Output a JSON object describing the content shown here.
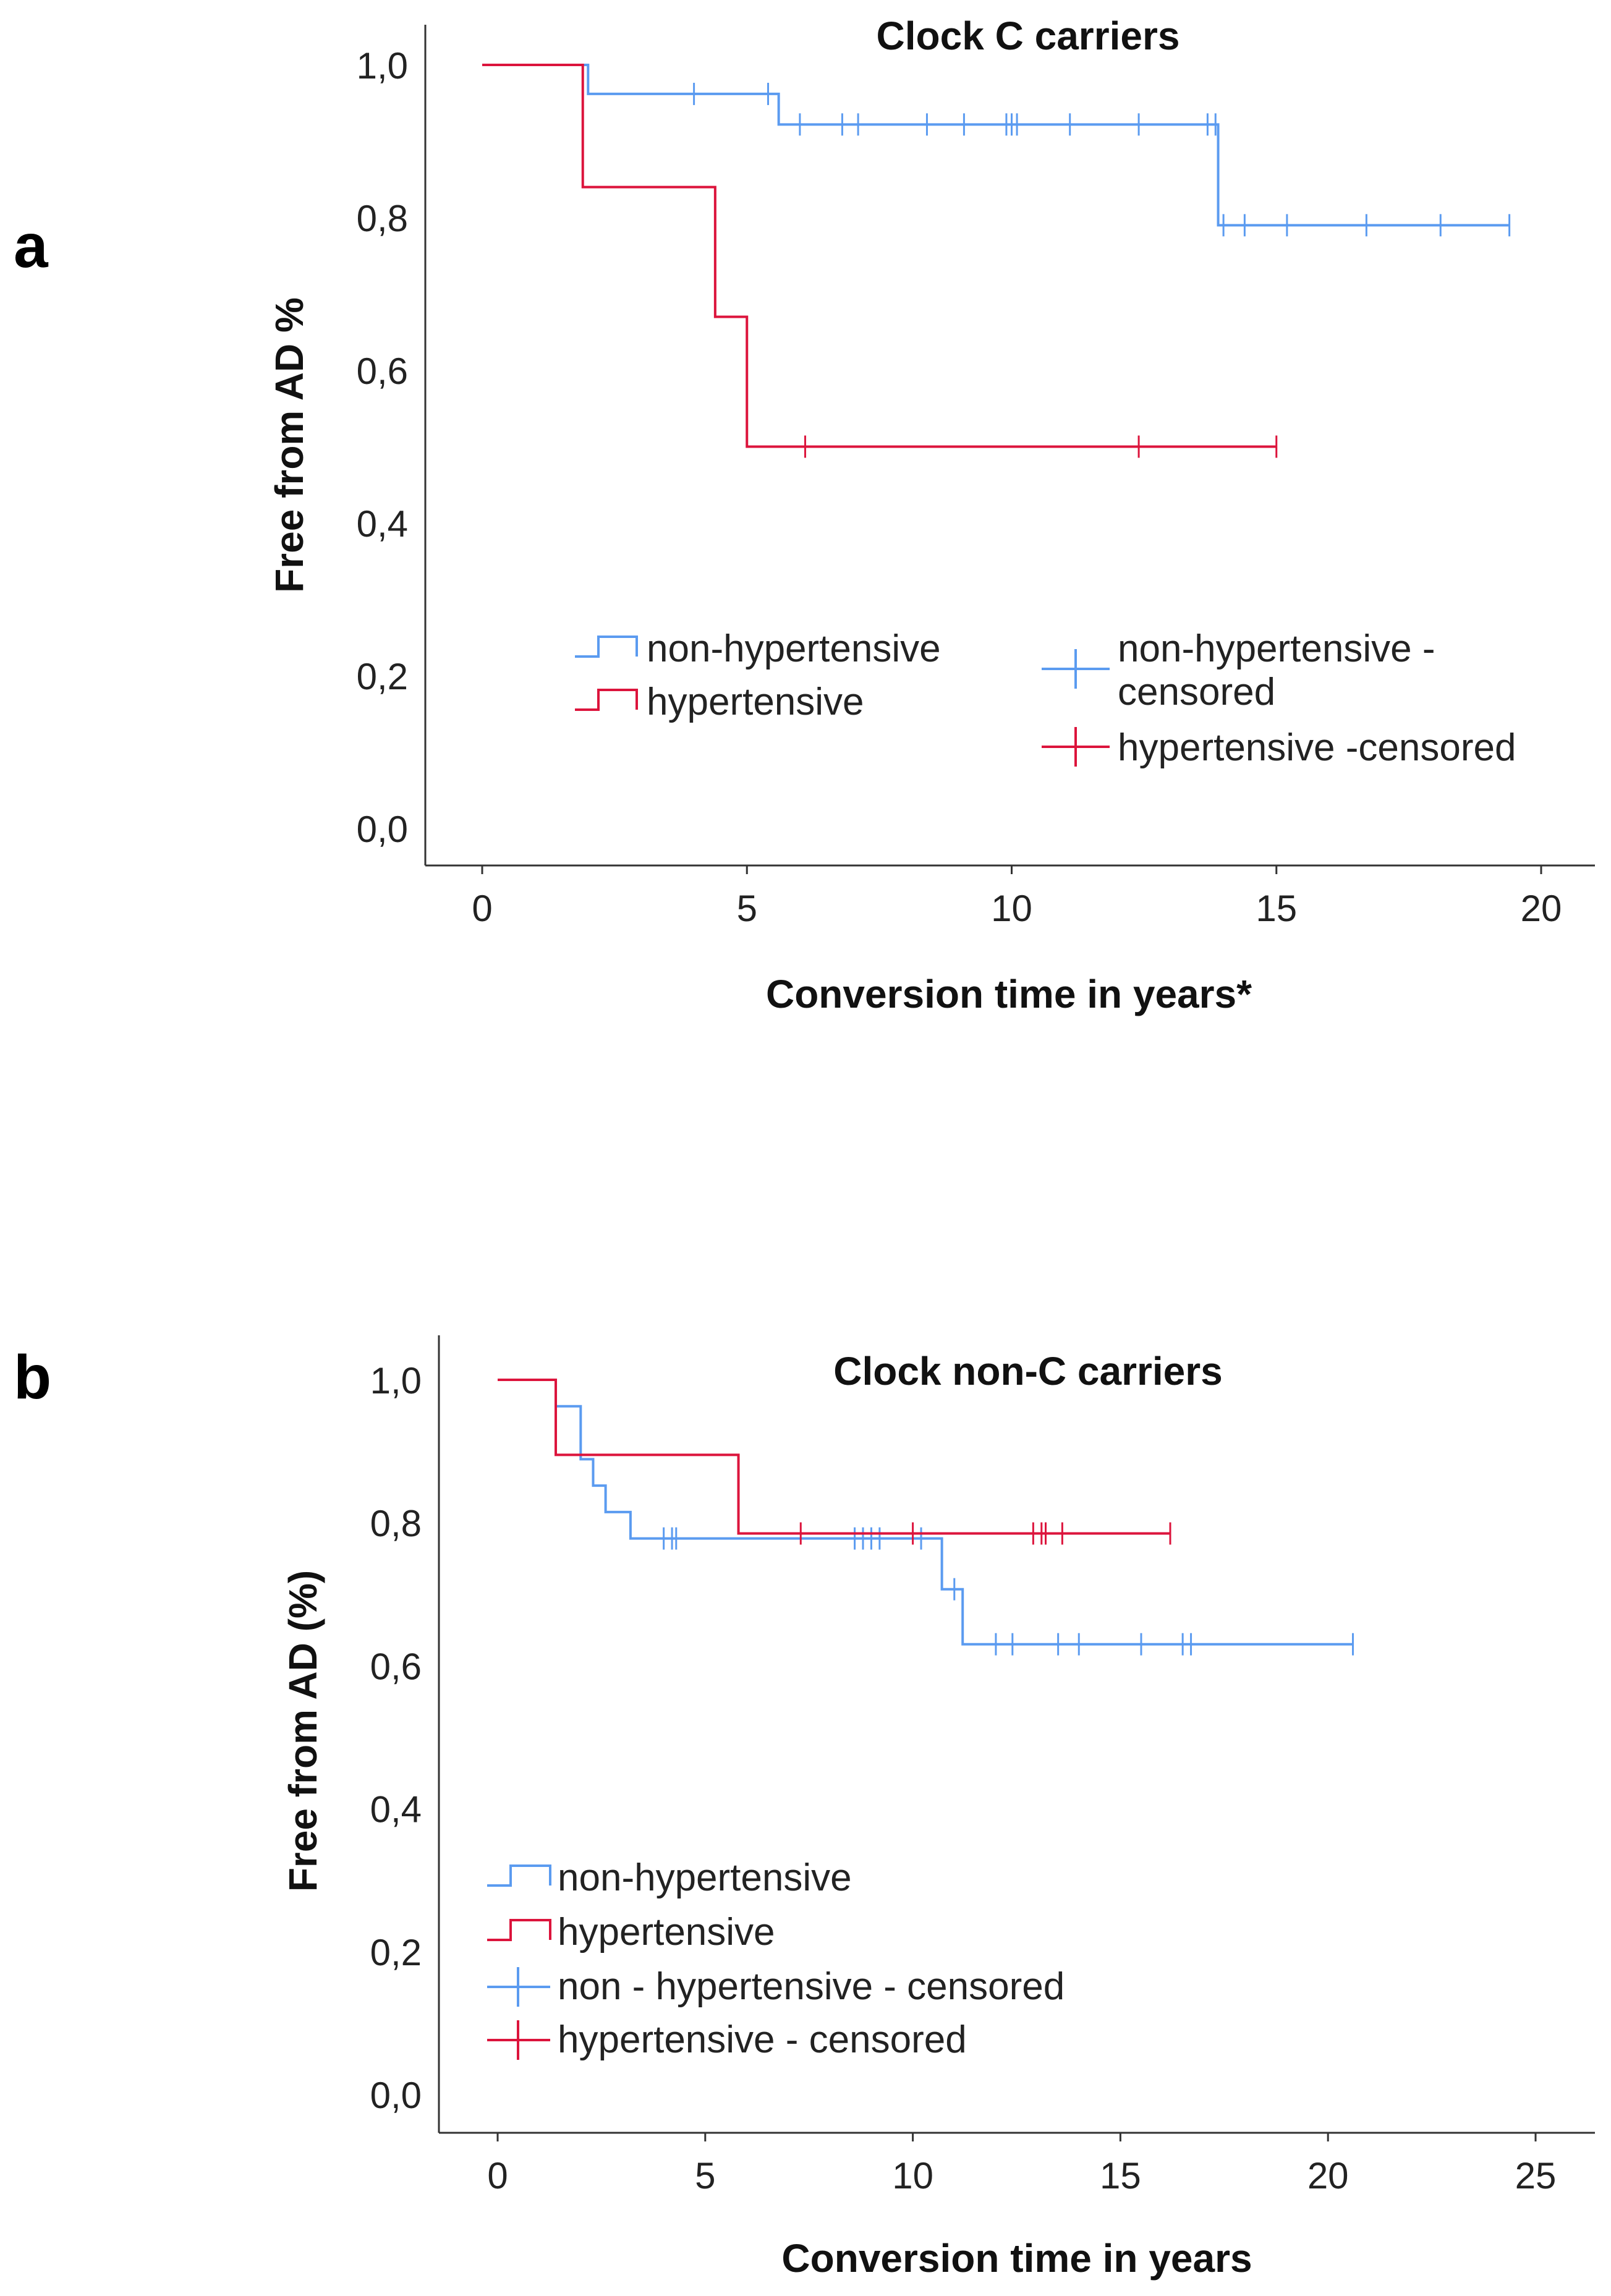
{
  "colors": {
    "non_hypertensive": "#5b9bf0",
    "hypertensive": "#dc143c"
  },
  "chart_data": [
    {
      "type": "line",
      "subtype": "kaplan-meier",
      "panel_label": "a",
      "title": "Clock C carriers",
      "xlabel": "Conversion time in years*",
      "ylabel": "Free from AD %",
      "xlim": [
        0,
        20
      ],
      "ylim": [
        0,
        1.0
      ],
      "x_ticks": [
        "0",
        "5",
        "10",
        "15",
        "20"
      ],
      "x_tick_values": [
        0,
        5,
        10,
        15,
        20
      ],
      "y_ticks": [
        "0,0",
        "0,2",
        "0,4",
        "0,6",
        "0,8",
        "1,0"
      ],
      "y_tick_values": [
        0,
        0.2,
        0.4,
        0.6,
        0.8,
        1.0
      ],
      "legend_position": "center",
      "legend": {
        "non_hypertensive": "non-hypertensive",
        "hypertensive": "hypertensive",
        "non_hypertensive_censored": "non-hypertensive - censored",
        "hypertensive_censored": "hypertensive -censored"
      },
      "series": [
        {
          "name": "non-hypertensive",
          "color_key": "non_hypertensive",
          "steps": [
            [
              0,
              1.0
            ],
            [
              2.0,
              0.962
            ],
            [
              5.6,
              0.922
            ],
            [
              13.9,
              0.79
            ],
            [
              19.4,
              0.79
            ]
          ],
          "censored": [
            [
              4.0,
              0.962
            ],
            [
              5.4,
              0.962
            ],
            [
              6.0,
              0.922
            ],
            [
              6.8,
              0.922
            ],
            [
              7.1,
              0.922
            ],
            [
              8.4,
              0.922
            ],
            [
              9.1,
              0.922
            ],
            [
              9.9,
              0.922
            ],
            [
              10.0,
              0.922
            ],
            [
              10.1,
              0.922
            ],
            [
              11.1,
              0.922
            ],
            [
              12.4,
              0.922
            ],
            [
              13.7,
              0.922
            ],
            [
              13.85,
              0.922
            ],
            [
              14.0,
              0.79
            ],
            [
              14.4,
              0.79
            ],
            [
              15.2,
              0.79
            ],
            [
              16.7,
              0.79
            ],
            [
              18.1,
              0.79
            ],
            [
              19.4,
              0.79
            ]
          ]
        },
        {
          "name": "hypertensive",
          "color_key": "hypertensive",
          "steps": [
            [
              0,
              1.0
            ],
            [
              1.9,
              0.84
            ],
            [
              4.4,
              0.67
            ],
            [
              5.0,
              0.5
            ],
            [
              15.0,
              0.5
            ]
          ],
          "censored": [
            [
              6.1,
              0.5
            ],
            [
              12.4,
              0.5
            ],
            [
              15.0,
              0.5
            ]
          ]
        }
      ]
    },
    {
      "type": "line",
      "subtype": "kaplan-meier",
      "panel_label": "b",
      "title": "Clock non-C carriers",
      "xlabel": "Conversion time in years",
      "ylabel": "Free from AD (%)",
      "xlim": [
        0,
        25
      ],
      "ylim": [
        0,
        1.0
      ],
      "x_ticks": [
        "0",
        "5",
        "10",
        "15",
        "20",
        "25"
      ],
      "x_tick_values": [
        0,
        5,
        10,
        15,
        20,
        25
      ],
      "y_ticks": [
        "0,0",
        "0,2",
        "0,4",
        "0,6",
        "0,8",
        "1,0"
      ],
      "y_tick_values": [
        0,
        0.2,
        0.4,
        0.6,
        0.8,
        1.0
      ],
      "legend_position": "bottom-left",
      "legend": {
        "non_hypertensive": "non-hypertensive",
        "hypertensive": "hypertensive",
        "non_hypertensive_censored": "non - hypertensive - censored",
        "hypertensive_censored": "hypertensive - censored"
      },
      "series": [
        {
          "name": "non-hypertensive",
          "color_key": "non_hypertensive",
          "steps": [
            [
              0,
              1.0
            ],
            [
              1.4,
              0.963
            ],
            [
              2.0,
              0.889
            ],
            [
              2.3,
              0.852
            ],
            [
              2.6,
              0.815
            ],
            [
              3.2,
              0.778
            ],
            [
              10.7,
              0.707
            ],
            [
              11.2,
              0.63
            ],
            [
              20.6,
              0.63
            ]
          ],
          "censored": [
            [
              4.0,
              0.778
            ],
            [
              4.2,
              0.778
            ],
            [
              4.3,
              0.778
            ],
            [
              8.6,
              0.778
            ],
            [
              8.8,
              0.778
            ],
            [
              9.0,
              0.778
            ],
            [
              9.2,
              0.778
            ],
            [
              10.2,
              0.778
            ],
            [
              11.0,
              0.707
            ],
            [
              12.0,
              0.63
            ],
            [
              12.4,
              0.63
            ],
            [
              13.5,
              0.63
            ],
            [
              14.0,
              0.63
            ],
            [
              15.5,
              0.63
            ],
            [
              16.5,
              0.63
            ],
            [
              16.7,
              0.63
            ],
            [
              20.6,
              0.63
            ]
          ]
        },
        {
          "name": "hypertensive",
          "color_key": "hypertensive",
          "steps": [
            [
              0,
              1.0
            ],
            [
              1.4,
              0.895
            ],
            [
              5.8,
              0.785
            ],
            [
              16.2,
              0.785
            ]
          ],
          "censored": [
            [
              7.3,
              0.785
            ],
            [
              10.0,
              0.785
            ],
            [
              12.9,
              0.785
            ],
            [
              13.1,
              0.785
            ],
            [
              13.2,
              0.785
            ],
            [
              13.6,
              0.785
            ],
            [
              16.2,
              0.785
            ]
          ]
        }
      ]
    }
  ]
}
